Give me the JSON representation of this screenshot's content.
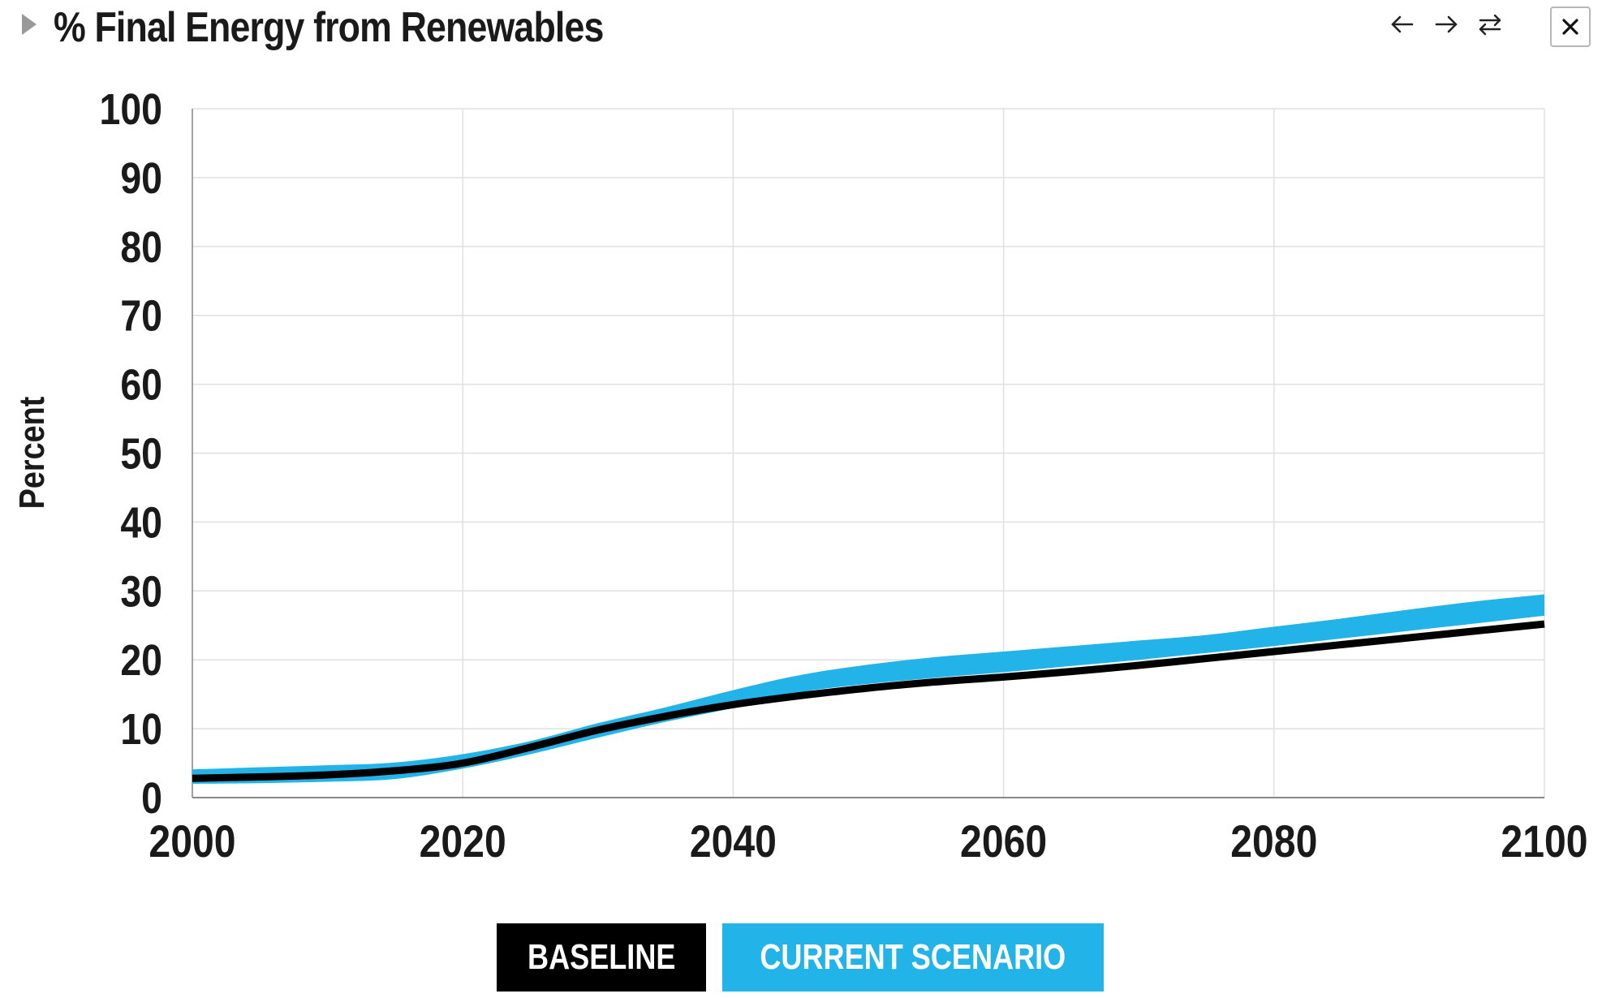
{
  "title": "% Final Energy from Renewables",
  "icons": {
    "expand": "triangle-right-icon",
    "back": "arrow-left-icon",
    "forward": "arrow-right-icon",
    "swap": "swap-arrows-icon",
    "close": "close-icon"
  },
  "legend": {
    "baseline_label": "BASELINE",
    "current_label": "CURRENT SCENARIO"
  },
  "colors": {
    "baseline": "#000000",
    "current": "#22b4e8",
    "grid": "#e0e0e0",
    "axis": "#888888"
  },
  "chart_data": {
    "type": "line",
    "title": "% Final Energy from Renewables",
    "xlabel": "",
    "ylabel": "Percent",
    "xlim": [
      2000,
      2100
    ],
    "ylim": [
      0,
      100
    ],
    "x_ticks": [
      2000,
      2020,
      2040,
      2060,
      2080,
      2100
    ],
    "y_ticks": [
      0,
      10,
      20,
      30,
      40,
      50,
      60,
      70,
      80,
      90,
      100
    ],
    "grid": true,
    "x": [
      2000,
      2005,
      2010,
      2015,
      2020,
      2025,
      2030,
      2035,
      2040,
      2045,
      2050,
      2055,
      2060,
      2065,
      2070,
      2075,
      2080,
      2085,
      2090,
      2095,
      2100
    ],
    "series": [
      {
        "name": "BASELINE",
        "kind": "line",
        "values": [
          2.8,
          3.0,
          3.3,
          3.9,
          5.0,
          7.3,
          9.8,
          11.8,
          13.5,
          14.8,
          15.9,
          16.8,
          17.5,
          18.3,
          19.2,
          20.2,
          21.2,
          22.2,
          23.2,
          24.2,
          25.2
        ]
      },
      {
        "name": "CURRENT SCENARIO",
        "kind": "range",
        "lower": [
          2.0,
          2.1,
          2.3,
          2.7,
          4.2,
          6.3,
          8.7,
          11.0,
          13.0,
          15.3,
          16.5,
          17.4,
          18.2,
          19.1,
          20.0,
          21.0,
          22.0,
          23.1,
          24.2,
          25.3,
          26.4
        ],
        "upper": [
          4.1,
          4.4,
          4.7,
          5.1,
          6.3,
          8.2,
          10.8,
          13.1,
          15.6,
          17.8,
          19.3,
          20.4,
          21.2,
          22.0,
          22.8,
          23.6,
          24.8,
          26.0,
          27.3,
          28.5,
          29.5
        ]
      }
    ]
  }
}
